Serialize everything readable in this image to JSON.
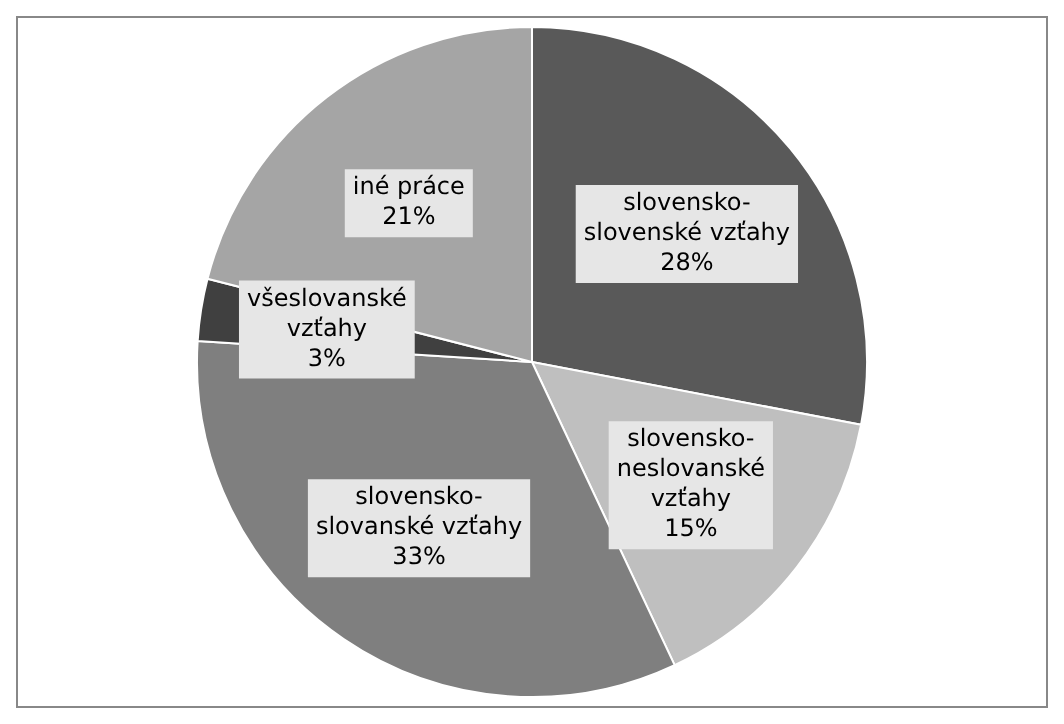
{
  "chart_data": {
    "type": "pie",
    "categories": [
      "slovensko-slovenské vzťahy",
      "slovensko-neslovanské vzťahy",
      "slovensko-slovanské vzťahy",
      "všeslovanské vzťahy",
      "iné práce"
    ],
    "values": [
      28,
      15,
      33,
      3,
      21
    ],
    "value_labels": [
      "28%",
      "15%",
      "33%",
      "3%",
      "21%"
    ],
    "colors": [
      "#595959",
      "#bfbfbf",
      "#7f7f7f",
      "#404040",
      "#a5a5a5"
    ],
    "legend": false
  }
}
